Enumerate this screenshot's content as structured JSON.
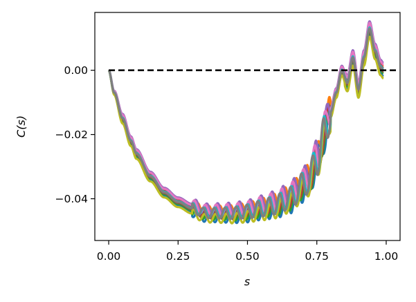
{
  "chart_data": {
    "type": "line",
    "title": "",
    "xlabel": "s",
    "ylabel": "C(s)",
    "xlim": [
      -0.05,
      1.05
    ],
    "ylim": [
      -0.053,
      0.018
    ],
    "xticks": [
      0.0,
      0.25,
      0.5,
      0.75,
      1.0
    ],
    "xtick_labels": [
      "0.00",
      "0.25",
      "0.50",
      "0.75",
      "1.00"
    ],
    "yticks": [
      0.0,
      -0.02,
      -0.04
    ],
    "ytick_labels": [
      "0.00",
      "−0.02",
      "−0.04"
    ],
    "grid": false,
    "legend": "none",
    "reference_line": {
      "y": 0.0,
      "style": "dashed",
      "color": "#000000"
    },
    "base_curve": {
      "x": [
        0.0,
        0.02,
        0.05,
        0.08,
        0.1,
        0.15,
        0.2,
        0.25,
        0.3,
        0.35,
        0.4,
        0.45,
        0.5,
        0.55,
        0.6,
        0.65,
        0.7,
        0.72,
        0.75,
        0.78,
        0.8,
        0.82,
        0.84,
        0.86,
        0.88,
        0.9,
        0.92,
        0.94,
        0.96,
        0.98,
        0.99
      ],
      "y": [
        0.0,
        -0.007,
        -0.015,
        -0.022,
        -0.026,
        -0.033,
        -0.038,
        -0.041,
        -0.043,
        -0.0445,
        -0.0445,
        -0.0445,
        -0.044,
        -0.043,
        -0.042,
        -0.04,
        -0.036,
        -0.034,
        -0.028,
        -0.019,
        -0.013,
        -0.007,
        0.0,
        -0.004,
        0.004,
        -0.006,
        0.004,
        0.013,
        0.006,
        0.001,
        0.0
      ]
    },
    "series": [
      {
        "color": "#1f77b4",
        "offset": -0.0012,
        "wiggle": 1.0
      },
      {
        "color": "#ff7f0e",
        "offset": 0.0008,
        "wiggle": 0.95
      },
      {
        "color": "#2ca02c",
        "offset": -0.0006,
        "wiggle": 0.9
      },
      {
        "color": "#d62728",
        "offset": 0.0004,
        "wiggle": 0.92
      },
      {
        "color": "#9467bd",
        "offset": 0.0014,
        "wiggle": 1.05
      },
      {
        "color": "#8c564b",
        "offset": -0.0003,
        "wiggle": 0.88
      },
      {
        "color": "#e377c2",
        "offset": 0.0011,
        "wiggle": 1.0
      },
      {
        "color": "#bcbd22",
        "offset": -0.0016,
        "wiggle": 0.85
      },
      {
        "color": "#17becf",
        "offset": 0.0002,
        "wiggle": 0.97
      },
      {
        "color": "#7f7f7f",
        "offset": 0.0,
        "wiggle": 1.0
      }
    ]
  }
}
